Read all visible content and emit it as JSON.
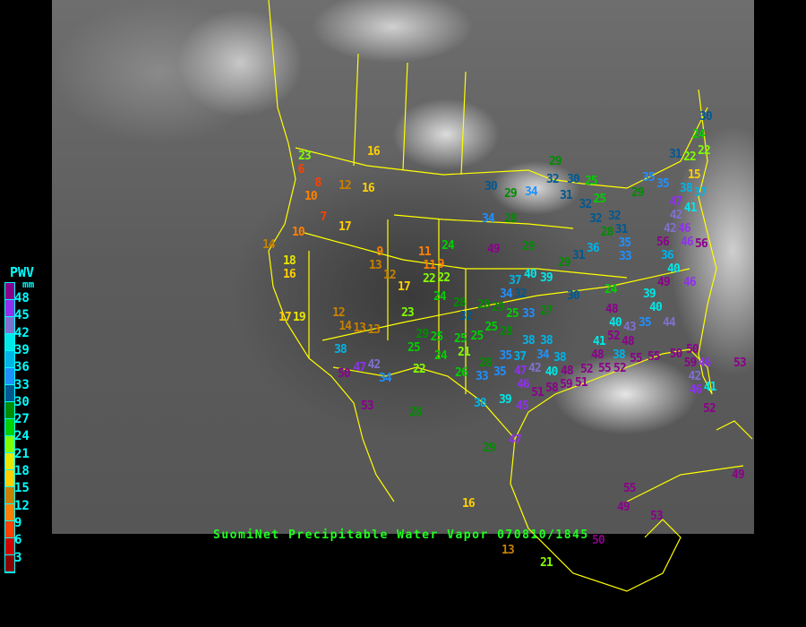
{
  "title": "SuomiNet Precipitable Water Vapor 070810/1845",
  "legend": {
    "title": "PWV",
    "unit": "mm",
    "labels": [
      "48",
      "45",
      "42",
      "39",
      "36",
      "33",
      "30",
      "27",
      "24",
      "21",
      "18",
      "15",
      "12",
      "9",
      "6",
      "3"
    ],
    "colors": [
      "#8b008b",
      "#9030f0",
      "#8070d0",
      "#00e8e8",
      "#00b4e8",
      "#1e90ff",
      "#005890",
      "#008c00",
      "#00d000",
      "#80ff00",
      "#e8e800",
      "#ffd000",
      "#c88000",
      "#ff8000",
      "#ff4000",
      "#d00000",
      "#8b0000"
    ]
  },
  "stations": [
    23,
    6,
    8,
    10,
    12,
    16,
    16,
    7,
    17,
    10,
    14,
    18,
    16,
    17,
    19,
    12,
    14,
    13,
    9,
    13,
    12,
    17,
    11,
    11,
    9,
    22,
    22,
    24,
    24,
    23,
    28,
    32,
    29,
    25,
    25,
    13,
    38,
    42,
    47,
    34,
    50,
    53,
    22,
    28,
    24,
    21,
    28,
    26,
    33,
    35,
    29,
    16,
    13,
    21,
    50,
    38,
    39,
    45,
    47,
    47,
    46,
    42,
    51,
    58,
    30,
    29,
    34,
    34,
    28,
    49,
    29,
    40,
    39,
    37,
    34,
    32,
    28,
    29,
    25,
    33,
    27,
    30,
    24,
    25,
    28,
    38,
    38,
    34,
    38,
    40,
    37,
    35,
    25,
    25,
    29,
    32,
    30,
    25,
    31,
    32,
    25,
    32,
    32,
    28,
    35,
    33,
    31,
    36,
    31,
    29,
    29,
    35,
    35,
    31,
    22,
    22,
    30,
    24,
    15,
    38,
    37,
    47,
    41,
    42,
    42,
    46,
    46,
    56,
    56,
    36,
    40,
    46,
    49,
    39,
    40,
    35,
    44,
    48,
    40,
    52,
    43,
    48,
    41,
    48,
    38,
    55,
    55,
    50,
    50,
    59,
    46,
    42,
    46,
    41,
    52,
    53,
    48,
    52,
    51,
    55,
    52,
    59,
    49,
    55,
    49,
    53,
    56
  ]
}
